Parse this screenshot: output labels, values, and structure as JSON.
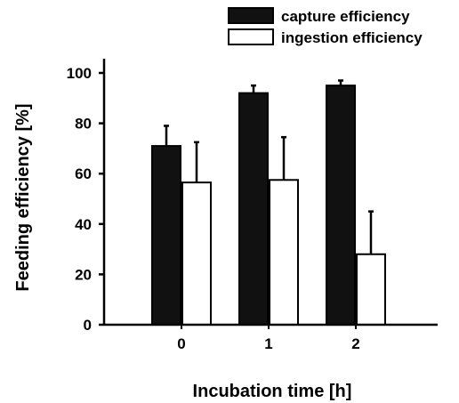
{
  "chart_data": {
    "type": "bar",
    "categories": [
      "0",
      "1",
      "2"
    ],
    "series": [
      {
        "name": "capture efficiency",
        "values": [
          71,
          92,
          95
        ],
        "errors": [
          8,
          3,
          2
        ],
        "fill": "#111111"
      },
      {
        "name": "ingestion efficiency",
        "values": [
          56.5,
          57.5,
          28
        ],
        "errors": [
          16,
          17,
          17
        ],
        "fill": "#ffffff"
      }
    ],
    "xlabel": "Incubation time [h]",
    "ylabel": "Feeding efficiency [%]",
    "ylim": [
      0,
      100
    ],
    "yticks": [
      0,
      20,
      40,
      60,
      80,
      100
    ],
    "legend_position": "top-right",
    "grid": false
  }
}
